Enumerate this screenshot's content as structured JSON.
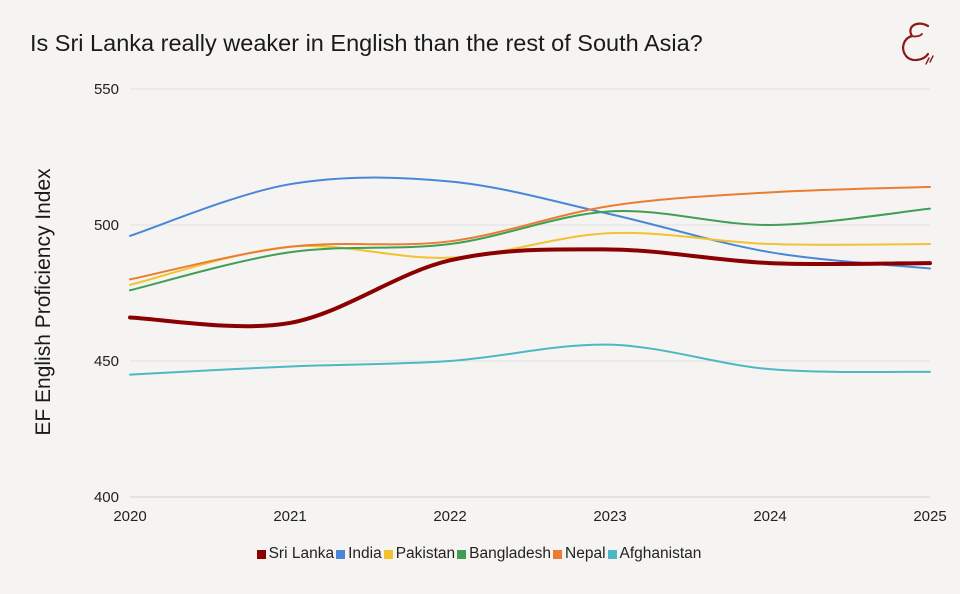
{
  "title": "Is Sri Lanka really weaker in English than the rest of South Asia?",
  "logo": {
    "icon": "script-E-logo",
    "color": "#8b1a1a"
  },
  "chart_data": {
    "type": "line",
    "title": "Is Sri Lanka really weaker in English than the rest of South Asia?",
    "xlabel": "",
    "ylabel": "EF English Proficiency Index",
    "x": [
      "2020",
      "2021",
      "2022",
      "2023",
      "2024",
      "2025"
    ],
    "ylim": [
      400,
      550
    ],
    "yticks": [
      "400",
      "450",
      "500",
      "550"
    ],
    "grid": true,
    "smooth": true,
    "legend_position": "bottom",
    "series": [
      {
        "name": "Sri Lanka",
        "color": "#8b0000",
        "width": 4,
        "values": [
          466,
          464,
          487,
          491,
          486,
          486
        ]
      },
      {
        "name": "India",
        "color": "#4a86d8",
        "width": 2,
        "values": [
          496,
          515,
          516,
          504,
          490,
          484
        ]
      },
      {
        "name": "Pakistan",
        "color": "#f2c230",
        "width": 2,
        "values": [
          478,
          492,
          488,
          497,
          493,
          493
        ]
      },
      {
        "name": "Bangladesh",
        "color": "#3f9f55",
        "width": 2,
        "values": [
          476,
          490,
          493,
          505,
          500,
          506
        ]
      },
      {
        "name": "Nepal",
        "color": "#ec7d30",
        "width": 2,
        "values": [
          480,
          492,
          494,
          507,
          512,
          514
        ]
      },
      {
        "name": "Afghanistan",
        "color": "#4cb8c4",
        "width": 2,
        "values": [
          445,
          448,
          450,
          456,
          447,
          446
        ]
      }
    ]
  }
}
